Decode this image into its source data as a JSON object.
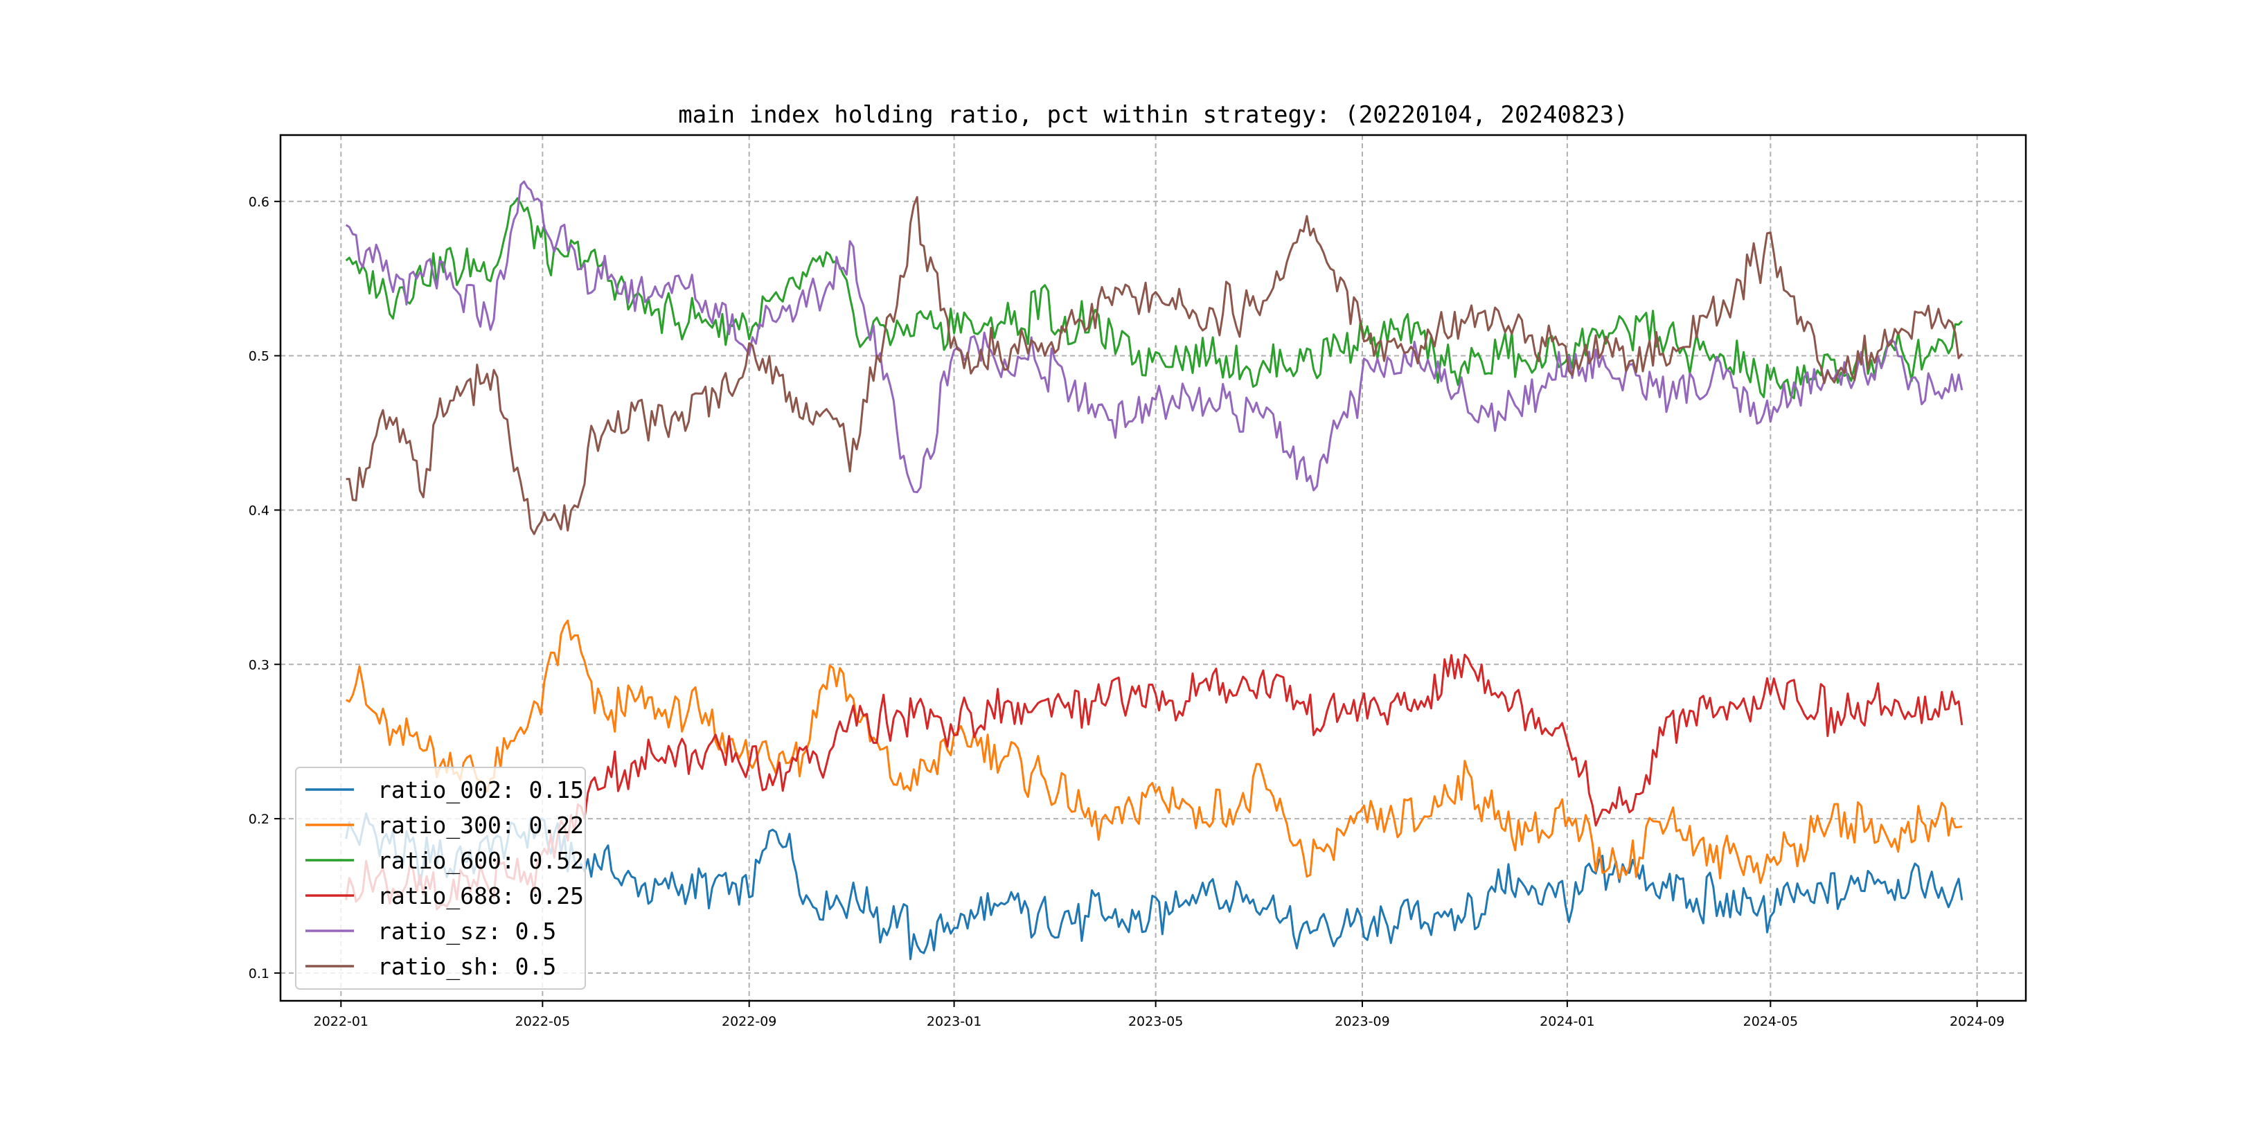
{
  "chart_data": {
    "type": "line",
    "title": "main index holding ratio, pct within strategy: (20220104, 20240823)",
    "xlabel": "",
    "ylabel": "",
    "x_range": [
      "2022-01-04",
      "2024-08-23"
    ],
    "xlim": [
      "2021-11-26",
      "2024-09-30"
    ],
    "ylim": [
      0.082,
      0.643
    ],
    "grid": true,
    "legend_position": "lower-left",
    "x_ticks": [
      "2022-01",
      "2022-05",
      "2022-09",
      "2023-01",
      "2023-05",
      "2023-09",
      "2024-01",
      "2024-05",
      "2024-09"
    ],
    "x_tick_dates": [
      "2022-01-01",
      "2022-05-01",
      "2022-09-01",
      "2023-01-01",
      "2023-05-01",
      "2023-09-01",
      "2024-01-01",
      "2024-05-01",
      "2024-09-01"
    ],
    "y_ticks": [
      "0.1",
      "0.2",
      "0.3",
      "0.4",
      "0.5",
      "0.6"
    ],
    "y_tick_values": [
      0.1,
      0.2,
      0.3,
      0.4,
      0.5,
      0.6
    ],
    "series": [
      {
        "name": "ratio_002",
        "legend_label": "ratio_002: 0.15",
        "color": "#1f77b4",
        "points": [
          [
            "2022-01-04",
            0.2
          ],
          [
            "2022-02-01",
            0.18
          ],
          [
            "2022-03-01",
            0.17
          ],
          [
            "2022-04-01",
            0.18
          ],
          [
            "2022-05-01",
            0.19
          ],
          [
            "2022-06-01",
            0.17
          ],
          [
            "2022-07-01",
            0.16
          ],
          [
            "2022-08-01",
            0.155
          ],
          [
            "2022-09-01",
            0.155
          ],
          [
            "2022-09-20",
            0.2
          ],
          [
            "2022-10-05",
            0.155
          ],
          [
            "2022-11-01",
            0.145
          ],
          [
            "2022-12-01",
            0.13
          ],
          [
            "2022-12-15",
            0.115
          ],
          [
            "2023-01-01",
            0.135
          ],
          [
            "2023-02-01",
            0.145
          ],
          [
            "2023-03-01",
            0.13
          ],
          [
            "2023-04-01",
            0.14
          ],
          [
            "2023-05-01",
            0.14
          ],
          [
            "2023-06-01",
            0.155
          ],
          [
            "2023-07-01",
            0.14
          ],
          [
            "2023-08-01",
            0.13
          ],
          [
            "2023-09-01",
            0.13
          ],
          [
            "2023-10-01",
            0.135
          ],
          [
            "2023-11-01",
            0.14
          ],
          [
            "2023-12-01",
            0.155
          ],
          [
            "2024-01-01",
            0.15
          ],
          [
            "2024-02-01",
            0.165
          ],
          [
            "2024-03-01",
            0.155
          ],
          [
            "2024-04-01",
            0.145
          ],
          [
            "2024-05-01",
            0.14
          ],
          [
            "2024-06-01",
            0.15
          ],
          [
            "2024-07-01",
            0.16
          ],
          [
            "2024-08-01",
            0.155
          ],
          [
            "2024-08-23",
            0.15
          ]
        ]
      },
      {
        "name": "ratio_300",
        "legend_label": "ratio_300: 0.22",
        "color": "#ff7f0e",
        "points": [
          [
            "2022-01-04",
            0.29
          ],
          [
            "2022-02-01",
            0.26
          ],
          [
            "2022-03-01",
            0.24
          ],
          [
            "2022-04-01",
            0.23
          ],
          [
            "2022-05-01",
            0.27
          ],
          [
            "2022-05-15",
            0.33
          ],
          [
            "2022-06-01",
            0.27
          ],
          [
            "2022-07-01",
            0.27
          ],
          [
            "2022-08-01",
            0.27
          ],
          [
            "2022-09-01",
            0.24
          ],
          [
            "2022-10-01",
            0.24
          ],
          [
            "2022-10-20",
            0.3
          ],
          [
            "2022-11-10",
            0.25
          ],
          [
            "2022-12-01",
            0.22
          ],
          [
            "2023-01-01",
            0.25
          ],
          [
            "2023-02-01",
            0.24
          ],
          [
            "2023-03-01",
            0.22
          ],
          [
            "2023-04-01",
            0.2
          ],
          [
            "2023-05-01",
            0.22
          ],
          [
            "2023-06-01",
            0.2
          ],
          [
            "2023-07-01",
            0.22
          ],
          [
            "2023-08-01",
            0.17
          ],
          [
            "2023-09-01",
            0.2
          ],
          [
            "2023-10-01",
            0.2
          ],
          [
            "2023-11-01",
            0.22
          ],
          [
            "2023-12-01",
            0.19
          ],
          [
            "2024-01-01",
            0.2
          ],
          [
            "2024-02-01",
            0.165
          ],
          [
            "2024-03-01",
            0.2
          ],
          [
            "2024-04-01",
            0.175
          ],
          [
            "2024-05-01",
            0.17
          ],
          [
            "2024-06-01",
            0.2
          ],
          [
            "2024-07-01",
            0.19
          ],
          [
            "2024-08-01",
            0.2
          ],
          [
            "2024-08-23",
            0.195
          ]
        ]
      },
      {
        "name": "ratio_600",
        "legend_label": "ratio_600: 0.52",
        "color": "#2ca02c",
        "points": [
          [
            "2022-01-04",
            0.56
          ],
          [
            "2022-02-01",
            0.54
          ],
          [
            "2022-03-01",
            0.56
          ],
          [
            "2022-04-01",
            0.55
          ],
          [
            "2022-04-15",
            0.61
          ],
          [
            "2022-05-01",
            0.57
          ],
          [
            "2022-06-01",
            0.56
          ],
          [
            "2022-07-01",
            0.53
          ],
          [
            "2022-08-01",
            0.52
          ],
          [
            "2022-09-01",
            0.52
          ],
          [
            "2022-10-01",
            0.54
          ],
          [
            "2022-10-20",
            0.56
          ],
          [
            "2022-11-10",
            0.51
          ],
          [
            "2022-12-01",
            0.52
          ],
          [
            "2023-01-01",
            0.52
          ],
          [
            "2023-02-01",
            0.52
          ],
          [
            "2023-03-01",
            0.53
          ],
          [
            "2023-04-01",
            0.51
          ],
          [
            "2023-05-01",
            0.5
          ],
          [
            "2023-06-01",
            0.5
          ],
          [
            "2023-07-01",
            0.49
          ],
          [
            "2023-08-01",
            0.5
          ],
          [
            "2023-09-01",
            0.51
          ],
          [
            "2023-10-01",
            0.51
          ],
          [
            "2023-11-01",
            0.49
          ],
          [
            "2023-12-01",
            0.5
          ],
          [
            "2024-01-01",
            0.5
          ],
          [
            "2024-02-01",
            0.52
          ],
          [
            "2024-03-01",
            0.51
          ],
          [
            "2024-04-01",
            0.5
          ],
          [
            "2024-05-01",
            0.48
          ],
          [
            "2024-06-01",
            0.49
          ],
          [
            "2024-07-01",
            0.5
          ],
          [
            "2024-08-01",
            0.5
          ],
          [
            "2024-08-23",
            0.52
          ]
        ]
      },
      {
        "name": "ratio_688",
        "legend_label": "ratio_688: 0.25",
        "color": "#d62728",
        "points": [
          [
            "2022-01-04",
            0.15
          ],
          [
            "2022-02-01",
            0.16
          ],
          [
            "2022-03-01",
            0.15
          ],
          [
            "2022-04-01",
            0.16
          ],
          [
            "2022-05-01",
            0.17
          ],
          [
            "2022-06-01",
            0.22
          ],
          [
            "2022-07-01",
            0.24
          ],
          [
            "2022-08-01",
            0.24
          ],
          [
            "2022-09-01",
            0.235
          ],
          [
            "2022-10-01",
            0.23
          ],
          [
            "2022-11-01",
            0.26
          ],
          [
            "2022-12-01",
            0.265
          ],
          [
            "2023-01-01",
            0.26
          ],
          [
            "2023-02-01",
            0.27
          ],
          [
            "2023-03-01",
            0.27
          ],
          [
            "2023-04-01",
            0.275
          ],
          [
            "2023-05-01",
            0.28
          ],
          [
            "2023-06-01",
            0.28
          ],
          [
            "2023-07-01",
            0.29
          ],
          [
            "2023-08-01",
            0.27
          ],
          [
            "2023-09-01",
            0.28
          ],
          [
            "2023-10-01",
            0.27
          ],
          [
            "2023-11-01",
            0.3
          ],
          [
            "2023-12-01",
            0.27
          ],
          [
            "2024-01-01",
            0.26
          ],
          [
            "2024-01-20",
            0.2
          ],
          [
            "2024-02-15",
            0.22
          ],
          [
            "2024-03-01",
            0.26
          ],
          [
            "2024-04-01",
            0.27
          ],
          [
            "2024-05-01",
            0.28
          ],
          [
            "2024-06-01",
            0.27
          ],
          [
            "2024-07-01",
            0.27
          ],
          [
            "2024-08-01",
            0.28
          ],
          [
            "2024-08-23",
            0.26
          ]
        ]
      },
      {
        "name": "ratio_sz",
        "legend_label": "ratio_sz: 0.5",
        "color": "#9467bd",
        "points": [
          [
            "2022-01-04",
            0.59
          ],
          [
            "2022-02-01",
            0.54
          ],
          [
            "2022-03-01",
            0.55
          ],
          [
            "2022-04-01",
            0.52
          ],
          [
            "2022-04-20",
            0.61
          ],
          [
            "2022-05-10",
            0.58
          ],
          [
            "2022-06-01",
            0.55
          ],
          [
            "2022-07-01",
            0.54
          ],
          [
            "2022-08-01",
            0.54
          ],
          [
            "2022-09-01",
            0.51
          ],
          [
            "2022-10-01",
            0.53
          ],
          [
            "2022-11-01",
            0.56
          ],
          [
            "2022-11-20",
            0.49
          ],
          [
            "2022-12-10",
            0.41
          ],
          [
            "2023-01-01",
            0.5
          ],
          [
            "2023-02-01",
            0.5
          ],
          [
            "2023-03-01",
            0.49
          ],
          [
            "2023-04-01",
            0.46
          ],
          [
            "2023-05-01",
            0.47
          ],
          [
            "2023-06-01",
            0.46
          ],
          [
            "2023-07-01",
            0.47
          ],
          [
            "2023-08-01",
            0.42
          ],
          [
            "2023-09-01",
            0.48
          ],
          [
            "2023-10-01",
            0.5
          ],
          [
            "2023-11-01",
            0.47
          ],
          [
            "2023-12-01",
            0.46
          ],
          [
            "2024-01-01",
            0.5
          ],
          [
            "2024-02-01",
            0.49
          ],
          [
            "2024-03-01",
            0.47
          ],
          [
            "2024-04-01",
            0.49
          ],
          [
            "2024-05-01",
            0.46
          ],
          [
            "2024-06-01",
            0.48
          ],
          [
            "2024-07-01",
            0.5
          ],
          [
            "2024-08-01",
            0.48
          ],
          [
            "2024-08-23",
            0.48
          ]
        ]
      },
      {
        "name": "ratio_sh",
        "legend_label": "ratio_sh: 0.5",
        "color": "#8c564b",
        "points": [
          [
            "2022-01-04",
            0.41
          ],
          [
            "2022-02-01",
            0.46
          ],
          [
            "2022-02-20",
            0.42
          ],
          [
            "2022-03-01",
            0.47
          ],
          [
            "2022-04-01",
            0.49
          ],
          [
            "2022-04-25",
            0.39
          ],
          [
            "2022-05-15",
            0.39
          ],
          [
            "2022-06-01",
            0.45
          ],
          [
            "2022-07-01",
            0.46
          ],
          [
            "2022-08-01",
            0.46
          ],
          [
            "2022-09-01",
            0.5
          ],
          [
            "2022-10-01",
            0.47
          ],
          [
            "2022-11-01",
            0.44
          ],
          [
            "2022-11-20",
            0.51
          ],
          [
            "2022-12-10",
            0.59
          ],
          [
            "2023-01-01",
            0.5
          ],
          [
            "2023-02-01",
            0.5
          ],
          [
            "2023-03-01",
            0.51
          ],
          [
            "2023-04-01",
            0.54
          ],
          [
            "2023-05-01",
            0.53
          ],
          [
            "2023-06-01",
            0.53
          ],
          [
            "2023-07-01",
            0.53
          ],
          [
            "2023-08-01",
            0.58
          ],
          [
            "2023-09-01",
            0.52
          ],
          [
            "2023-10-01",
            0.5
          ],
          [
            "2023-11-01",
            0.53
          ],
          [
            "2023-12-01",
            0.52
          ],
          [
            "2024-01-01",
            0.5
          ],
          [
            "2024-02-01",
            0.5
          ],
          [
            "2024-03-01",
            0.5
          ],
          [
            "2024-04-01",
            0.53
          ],
          [
            "2024-05-01",
            0.57
          ],
          [
            "2024-06-01",
            0.49
          ],
          [
            "2024-07-01",
            0.5
          ],
          [
            "2024-08-01",
            0.53
          ],
          [
            "2024-08-23",
            0.51
          ]
        ]
      }
    ]
  }
}
